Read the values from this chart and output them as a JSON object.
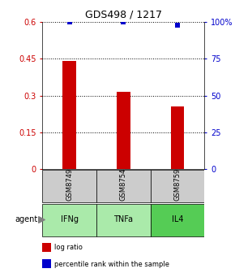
{
  "title": "GDS498 / 1217",
  "samples": [
    "GSM8749",
    "GSM8754",
    "GSM8759"
  ],
  "agents": [
    "IFNg",
    "TNFa",
    "IL4"
  ],
  "log_ratios": [
    0.44,
    0.315,
    0.255
  ],
  "percentile_ranks": [
    99.8,
    99.8,
    97.5
  ],
  "left_ylim": [
    0,
    0.6
  ],
  "left_yticks": [
    0,
    0.15,
    0.3,
    0.45,
    0.6
  ],
  "left_ytick_labels": [
    "0",
    "0.15",
    "0.3",
    "0.45",
    "0.6"
  ],
  "right_ylim": [
    0,
    100
  ],
  "right_yticks": [
    0,
    25,
    50,
    75,
    100
  ],
  "right_ytick_labels": [
    "0",
    "25",
    "50",
    "75",
    "100%"
  ],
  "bar_color": "#cc0000",
  "marker_color": "#0000cc",
  "sample_box_color": "#cccccc",
  "agent_box_color_light": "#aaeaaa",
  "agent_box_color_dark": "#55cc55",
  "agent_label": "agent",
  "legend_items": [
    {
      "label": "log ratio",
      "color": "#cc0000"
    },
    {
      "label": "percentile rank within the sample",
      "color": "#0000cc"
    }
  ],
  "fig_width": 2.9,
  "fig_height": 3.36,
  "dpi": 100
}
